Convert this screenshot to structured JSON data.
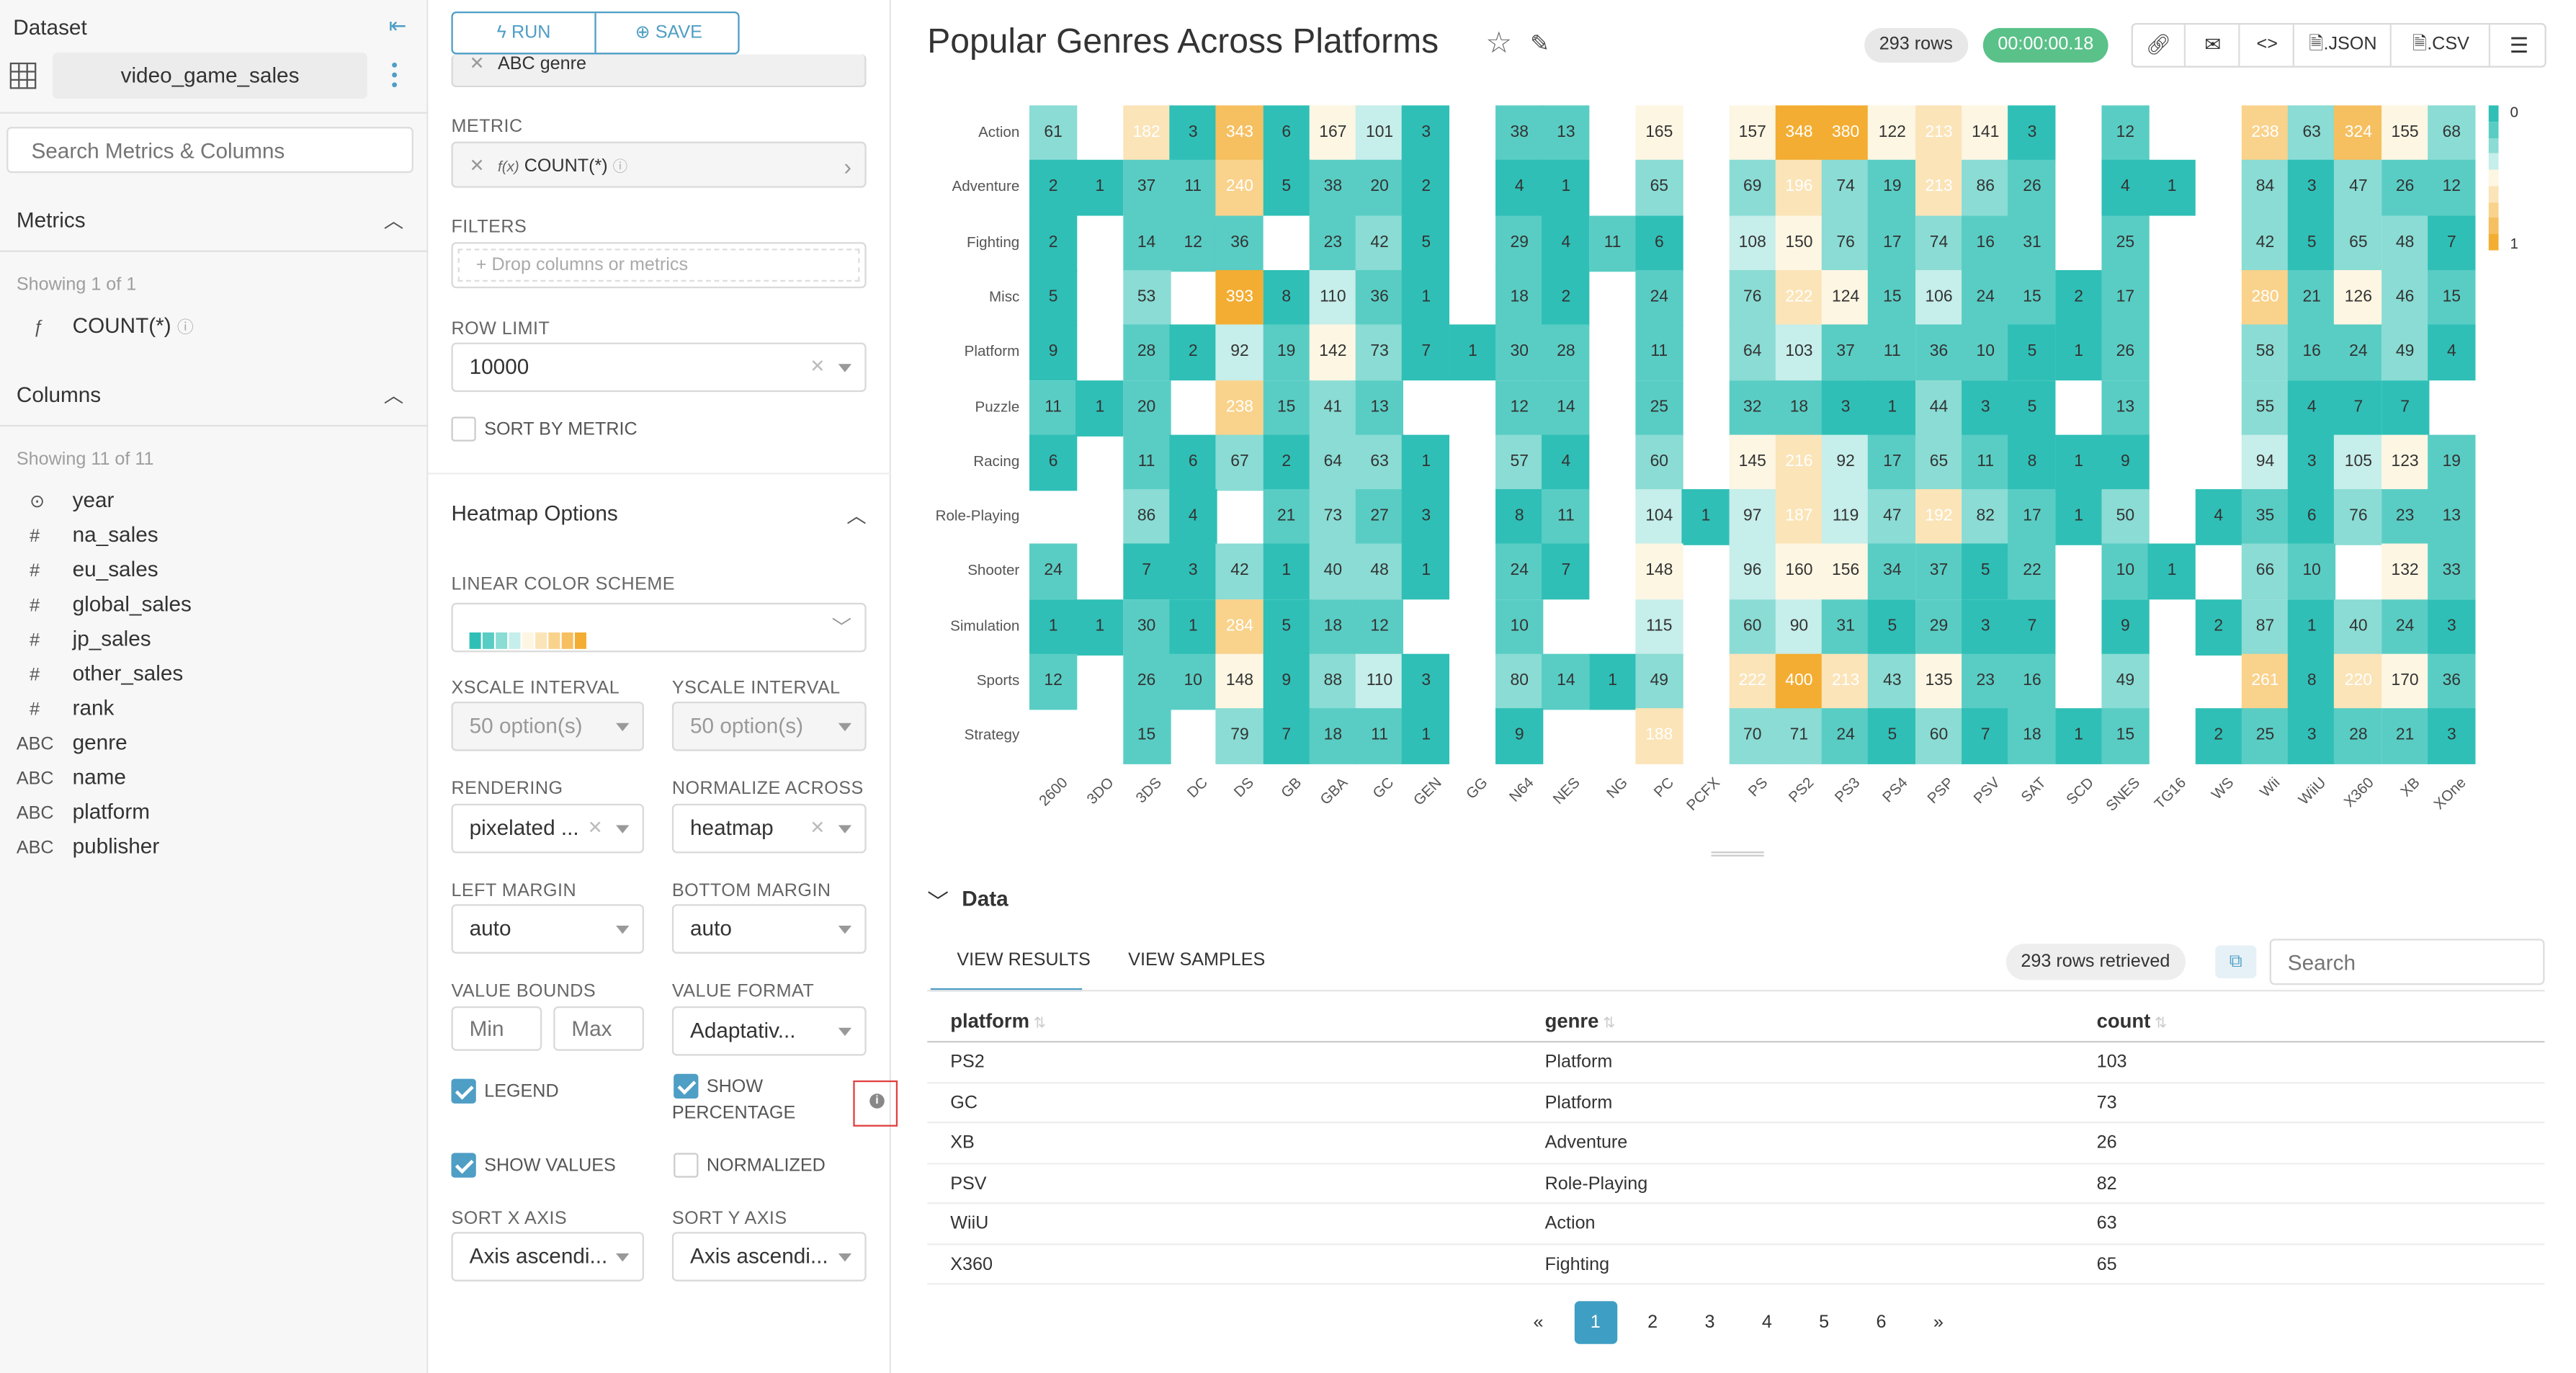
{
  "dataset": {
    "header": "Dataset",
    "name": "video_game_sales",
    "search_placeholder": "Search Metrics & Columns",
    "metrics_title": "Metrics",
    "metrics_showing": "Showing 1 of 1",
    "metrics": [
      {
        "type": "ƒ",
        "name": "COUNT(*)"
      }
    ],
    "columns_title": "Columns",
    "columns_showing": "Showing 11 of 11",
    "columns": [
      {
        "type": "⊙",
        "name": "year"
      },
      {
        "type": "#",
        "name": "na_sales"
      },
      {
        "type": "#",
        "name": "eu_sales"
      },
      {
        "type": "#",
        "name": "global_sales"
      },
      {
        "type": "#",
        "name": "jp_sales"
      },
      {
        "type": "#",
        "name": "other_sales"
      },
      {
        "type": "#",
        "name": "rank"
      },
      {
        "type": "ABC",
        "name": "genre"
      },
      {
        "type": "ABC",
        "name": "name"
      },
      {
        "type": "ABC",
        "name": "platform"
      },
      {
        "type": "ABC",
        "name": "publisher"
      }
    ]
  },
  "controls": {
    "run": "RUN",
    "save": "SAVE",
    "groupby_value": "ABC  genre",
    "metric_label": "METRIC",
    "metric_value": "COUNT(*)",
    "filters_label": "FILTERS",
    "filters_placeholder": "Drop columns or metrics",
    "row_limit_label": "ROW LIMIT",
    "row_limit_value": "10000",
    "sort_by_metric": "SORT BY METRIC",
    "heatmap_title": "Heatmap Options",
    "color_scheme_label": "LINEAR COLOR SCHEME",
    "xscale_label": "XSCALE INTERVAL",
    "xscale_value": "50 option(s)",
    "yscale_label": "YSCALE INTERVAL",
    "yscale_value": "50 option(s)",
    "rendering_label": "RENDERING",
    "rendering_value": "pixelated ...",
    "normalize_label": "NORMALIZE ACROSS",
    "normalize_value": "heatmap",
    "left_margin_label": "LEFT MARGIN",
    "left_margin_value": "auto",
    "bottom_margin_label": "BOTTOM MARGIN",
    "bottom_margin_value": "auto",
    "value_bounds_label": "VALUE BOUNDS",
    "min_placeholder": "Min",
    "max_placeholder": "Max",
    "value_format_label": "VALUE FORMAT",
    "value_format_value": "Adaptativ...",
    "legend": "LEGEND",
    "show_percentage_1": "SHOW",
    "show_percentage_2": "PERCENTAGE",
    "show_values": "SHOW VALUES",
    "normalized": "NORMALIZED",
    "sort_x_label": "SORT X AXIS",
    "sort_x_value": "Axis ascendi...",
    "sort_y_label": "SORT Y AXIS",
    "sort_y_value": "Axis ascendi...",
    "checks": {
      "sort_by_metric": false,
      "legend": true,
      "show_percentage": true,
      "show_values": true,
      "normalized": false
    }
  },
  "header": {
    "title": "Popular Genres Across Platforms",
    "rows_badge": "293 rows",
    "time_badge": "00:00:00.18",
    "json": ".JSON",
    "csv": ".CSV"
  },
  "chart_data": {
    "type": "heatmap",
    "x": [
      "2600",
      "3DO",
      "3DS",
      "DC",
      "DS",
      "GB",
      "GBA",
      "GC",
      "GEN",
      "GG",
      "N64",
      "NES",
      "NG",
      "PC",
      "PCFX",
      "PS",
      "PS2",
      "PS3",
      "PS4",
      "PSP",
      "PSV",
      "SAT",
      "SCD",
      "SNES",
      "TG16",
      "WS",
      "Wii",
      "WiiU",
      "X360",
      "XB",
      "XOne"
    ],
    "y": [
      "Action",
      "Adventure",
      "Fighting",
      "Misc",
      "Platform",
      "Puzzle",
      "Racing",
      "Role-Playing",
      "Shooter",
      "Simulation",
      "Sports",
      "Strategy"
    ],
    "values": [
      [
        61,
        null,
        182,
        3,
        343,
        6,
        167,
        101,
        3,
        null,
        38,
        13,
        null,
        165,
        null,
        157,
        348,
        380,
        122,
        213,
        141,
        3,
        null,
        12,
        null,
        null,
        238,
        63,
        324,
        155,
        68
      ],
      [
        2,
        1,
        37,
        11,
        240,
        5,
        38,
        20,
        2,
        null,
        4,
        1,
        null,
        65,
        null,
        69,
        196,
        74,
        19,
        213,
        86,
        26,
        null,
        4,
        1,
        null,
        84,
        3,
        47,
        26,
        12
      ],
      [
        2,
        null,
        14,
        12,
        36,
        null,
        23,
        42,
        5,
        null,
        29,
        4,
        11,
        6,
        null,
        108,
        150,
        76,
        17,
        74,
        16,
        31,
        null,
        25,
        null,
        null,
        42,
        5,
        65,
        48,
        7
      ],
      [
        5,
        null,
        53,
        null,
        393,
        8,
        110,
        36,
        1,
        null,
        18,
        2,
        null,
        24,
        null,
        76,
        222,
        124,
        15,
        106,
        24,
        15,
        2,
        17,
        null,
        null,
        280,
        21,
        126,
        46,
        15
      ],
      [
        9,
        null,
        28,
        2,
        92,
        19,
        142,
        73,
        7,
        1,
        30,
        28,
        null,
        11,
        null,
        64,
        103,
        37,
        11,
        36,
        10,
        5,
        1,
        26,
        null,
        null,
        58,
        16,
        24,
        49,
        4
      ],
      [
        11,
        1,
        20,
        null,
        238,
        15,
        41,
        13,
        null,
        null,
        12,
        14,
        null,
        25,
        null,
        32,
        18,
        3,
        1,
        44,
        3,
        5,
        null,
        13,
        null,
        null,
        55,
        4,
        7,
        7,
        null
      ],
      [
        6,
        null,
        11,
        6,
        67,
        2,
        64,
        63,
        1,
        null,
        57,
        4,
        null,
        60,
        null,
        145,
        216,
        92,
        17,
        65,
        11,
        8,
        1,
        9,
        null,
        null,
        94,
        3,
        105,
        123,
        19
      ],
      [
        null,
        null,
        86,
        4,
        null,
        21,
        73,
        27,
        3,
        null,
        8,
        11,
        null,
        104,
        1,
        97,
        187,
        119,
        47,
        192,
        82,
        17,
        1,
        50,
        null,
        4,
        35,
        6,
        76,
        23,
        13
      ],
      [
        24,
        null,
        7,
        3,
        42,
        1,
        40,
        48,
        1,
        null,
        24,
        7,
        null,
        148,
        null,
        96,
        160,
        156,
        34,
        37,
        5,
        22,
        null,
        10,
        1,
        null,
        66,
        10,
        null,
        132,
        33
      ],
      [
        1,
        1,
        30,
        1,
        284,
        5,
        18,
        12,
        null,
        null,
        10,
        null,
        null,
        115,
        null,
        60,
        90,
        31,
        5,
        29,
        3,
        7,
        null,
        9,
        null,
        2,
        87,
        1,
        40,
        24,
        3
      ],
      [
        12,
        null,
        26,
        10,
        148,
        9,
        88,
        110,
        3,
        null,
        80,
        14,
        1,
        49,
        null,
        222,
        400,
        213,
        43,
        135,
        23,
        16,
        null,
        49,
        null,
        null,
        261,
        8,
        220,
        170,
        36
      ],
      [
        null,
        null,
        15,
        null,
        79,
        7,
        18,
        11,
        1,
        null,
        9,
        null,
        null,
        188,
        null,
        70,
        71,
        24,
        5,
        60,
        7,
        18,
        1,
        15,
        null,
        2,
        25,
        3,
        28,
        21,
        3
      ]
    ],
    "legend_ticks": [
      "0",
      "1"
    ],
    "color_scale": [
      "#2fbfb6",
      "#59cdc4",
      "#8adcd4",
      "#c6eeea",
      "#fdf6e3",
      "#fbe4b8",
      "#f9d28b",
      "#f6bf5f",
      "#f3ad32"
    ]
  },
  "data_panel": {
    "title": "Data",
    "tab_results": "VIEW RESULTS",
    "tab_samples": "VIEW SAMPLES",
    "retrieved": "293 rows retrieved",
    "search_placeholder": "Search",
    "columns": [
      "platform",
      "genre",
      "count"
    ],
    "rows": [
      [
        "PS2",
        "Platform",
        "103"
      ],
      [
        "GC",
        "Platform",
        "73"
      ],
      [
        "XB",
        "Adventure",
        "26"
      ],
      [
        "PSV",
        "Role-Playing",
        "82"
      ],
      [
        "WiiU",
        "Action",
        "63"
      ],
      [
        "X360",
        "Fighting",
        "65"
      ]
    ],
    "pages": [
      "«",
      "1",
      "2",
      "3",
      "4",
      "5",
      "6",
      "»"
    ]
  }
}
